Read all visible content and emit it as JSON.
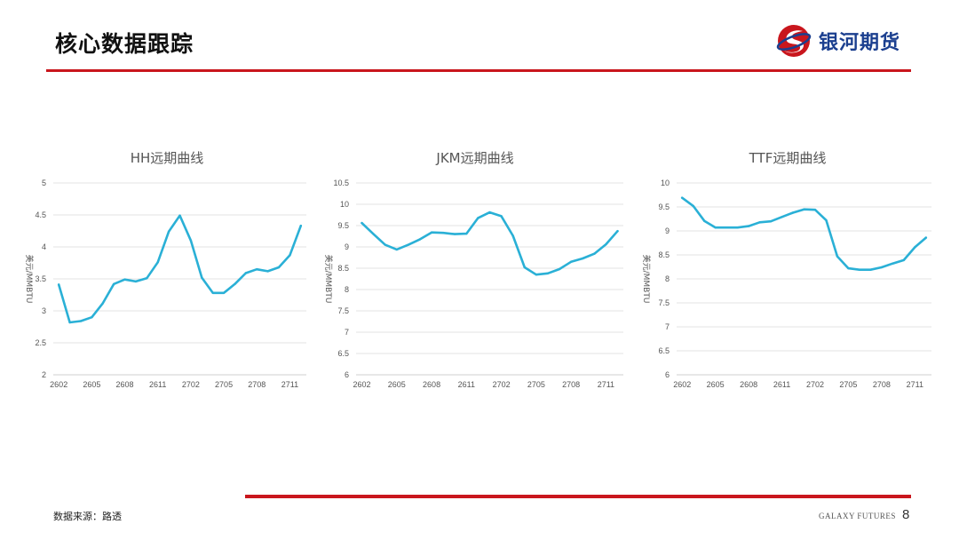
{
  "header": {
    "title": "核心数据跟踪",
    "logo_text": "银河期货"
  },
  "footer": {
    "source": "数据来源：路透",
    "brand": "GALAXY FUTURES",
    "page_number": "8"
  },
  "colors": {
    "accent_red": "#c9161d",
    "series": "#2ab0d6",
    "logo_blue": "#1b3f8f"
  },
  "chart_data": [
    {
      "type": "line",
      "title": "HH远期曲线",
      "ylabel": "美元/MMBTU",
      "xlabel": "",
      "ylim": [
        2,
        5
      ],
      "yticks": [
        2,
        2.5,
        3,
        3.5,
        4,
        4.5,
        5
      ],
      "ytick_labels": [
        "2",
        "2.5",
        "3",
        "3.5",
        "4",
        "4.5",
        "5"
      ],
      "grid": true,
      "categories": [
        "2602",
        "2603",
        "2604",
        "2605",
        "2606",
        "2607",
        "2608",
        "2609",
        "2610",
        "2611",
        "2612",
        "2701",
        "2702",
        "2703",
        "2704",
        "2705",
        "2706",
        "2707",
        "2708",
        "2709",
        "2710",
        "2711",
        "2712"
      ],
      "xtick_labels": [
        "2602",
        "2605",
        "2608",
        "2611",
        "2702",
        "2705",
        "2708",
        "2711"
      ],
      "series": [
        {
          "values": [
            3.41,
            2.82,
            2.84,
            2.9,
            3.12,
            3.42,
            3.49,
            3.46,
            3.51,
            3.76,
            4.24,
            4.49,
            4.1,
            3.52,
            3.28,
            3.28,
            3.42,
            3.59,
            3.65,
            3.62,
            3.68,
            3.87,
            4.33
          ]
        }
      ]
    },
    {
      "type": "line",
      "title": "JKM远期曲线",
      "ylabel": "美元/MMBTU",
      "xlabel": "",
      "ylim": [
        6,
        10.5
      ],
      "yticks": [
        6,
        6.5,
        7,
        7.5,
        8,
        8.5,
        9,
        9.5,
        10,
        10.5
      ],
      "ytick_labels": [
        "6",
        "6.5",
        "7",
        "7.5",
        "8",
        "8.5",
        "9",
        "9.5",
        "10",
        "10.5"
      ],
      "grid": true,
      "categories": [
        "2602",
        "2603",
        "2604",
        "2605",
        "2606",
        "2607",
        "2608",
        "2609",
        "2610",
        "2611",
        "2612",
        "2701",
        "2702",
        "2703",
        "2704",
        "2705",
        "2706",
        "2707",
        "2708",
        "2709",
        "2710",
        "2711",
        "2712"
      ],
      "xtick_labels": [
        "2602",
        "2605",
        "2608",
        "2611",
        "2702",
        "2705",
        "2708",
        "2711"
      ],
      "series": [
        {
          "values": [
            9.56,
            9.3,
            9.05,
            8.94,
            9.05,
            9.18,
            9.34,
            9.33,
            9.3,
            9.31,
            9.68,
            9.81,
            9.72,
            9.26,
            8.52,
            8.35,
            8.38,
            8.48,
            8.65,
            8.73,
            8.84,
            9.06,
            9.37
          ]
        }
      ]
    },
    {
      "type": "line",
      "title": "TTF远期曲线",
      "ylabel": "美元/MMBTU",
      "xlabel": "",
      "ylim": [
        6,
        10
      ],
      "yticks": [
        6,
        6.5,
        7,
        7.5,
        8,
        8.5,
        9,
        9.5,
        10
      ],
      "ytick_labels": [
        "6",
        "6.5",
        "7",
        "7.5",
        "8",
        "8.5",
        "9",
        "9.5",
        "10"
      ],
      "grid": true,
      "categories": [
        "2602",
        "2603",
        "2604",
        "2605",
        "2606",
        "2607",
        "2608",
        "2609",
        "2610",
        "2611",
        "2612",
        "2701",
        "2702",
        "2703",
        "2704",
        "2705",
        "2706",
        "2707",
        "2708",
        "2709",
        "2710",
        "2711",
        "2712"
      ],
      "xtick_labels": [
        "2602",
        "2605",
        "2608",
        "2611",
        "2702",
        "2705",
        "2708",
        "2711"
      ],
      "series": [
        {
          "values": [
            9.69,
            9.52,
            9.21,
            9.07,
            9.07,
            9.07,
            9.1,
            9.18,
            9.2,
            9.29,
            9.38,
            9.45,
            9.44,
            9.22,
            8.47,
            8.22,
            8.19,
            8.19,
            8.24,
            8.32,
            8.39,
            8.66,
            8.86
          ]
        }
      ]
    }
  ]
}
